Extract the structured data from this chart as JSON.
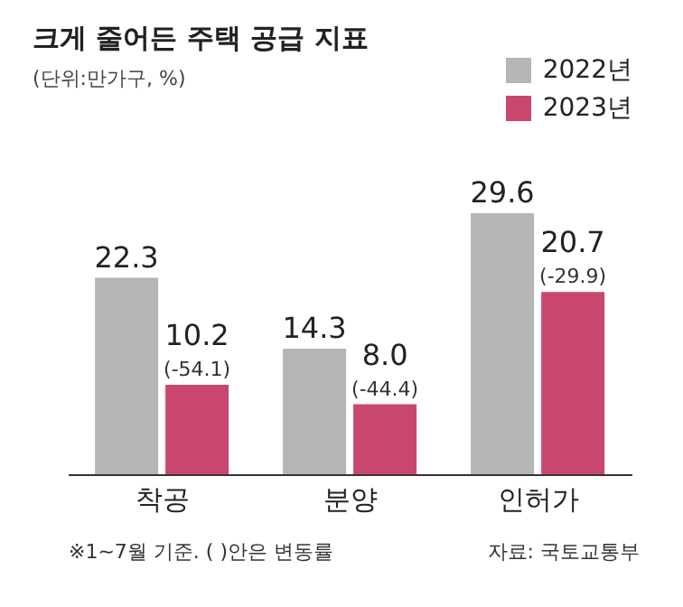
{
  "chart_data": {
    "type": "bar",
    "title": "크게 줄어든 주택 공급 지표",
    "subtitle": "(단위:만가구, %)",
    "categories": [
      "착공",
      "분양",
      "인허가"
    ],
    "series": [
      {
        "name": "2022년",
        "color": "#b5b5b5",
        "values": [
          22.3,
          14.3,
          29.6
        ],
        "value_labels": [
          "22.3",
          "14.3",
          "29.6"
        ]
      },
      {
        "name": "2023년",
        "color": "#c9476d",
        "values": [
          10.2,
          8.0,
          20.7
        ],
        "value_labels": [
          "10.2",
          "8.0",
          "20.7"
        ]
      }
    ],
    "annotations": [
      {
        "text": "(-54.1)",
        "x": "착공",
        "y": 10.2
      },
      {
        "text": "(-44.4)",
        "x": "분양",
        "y": 8.0
      },
      {
        "text": "(-29.9)",
        "x": "인허가",
        "y": 20.7
      },
      "※1~7월 기준. ( )안은 변동률",
      "자료: 국토교통부"
    ],
    "legend": "top right"
  }
}
